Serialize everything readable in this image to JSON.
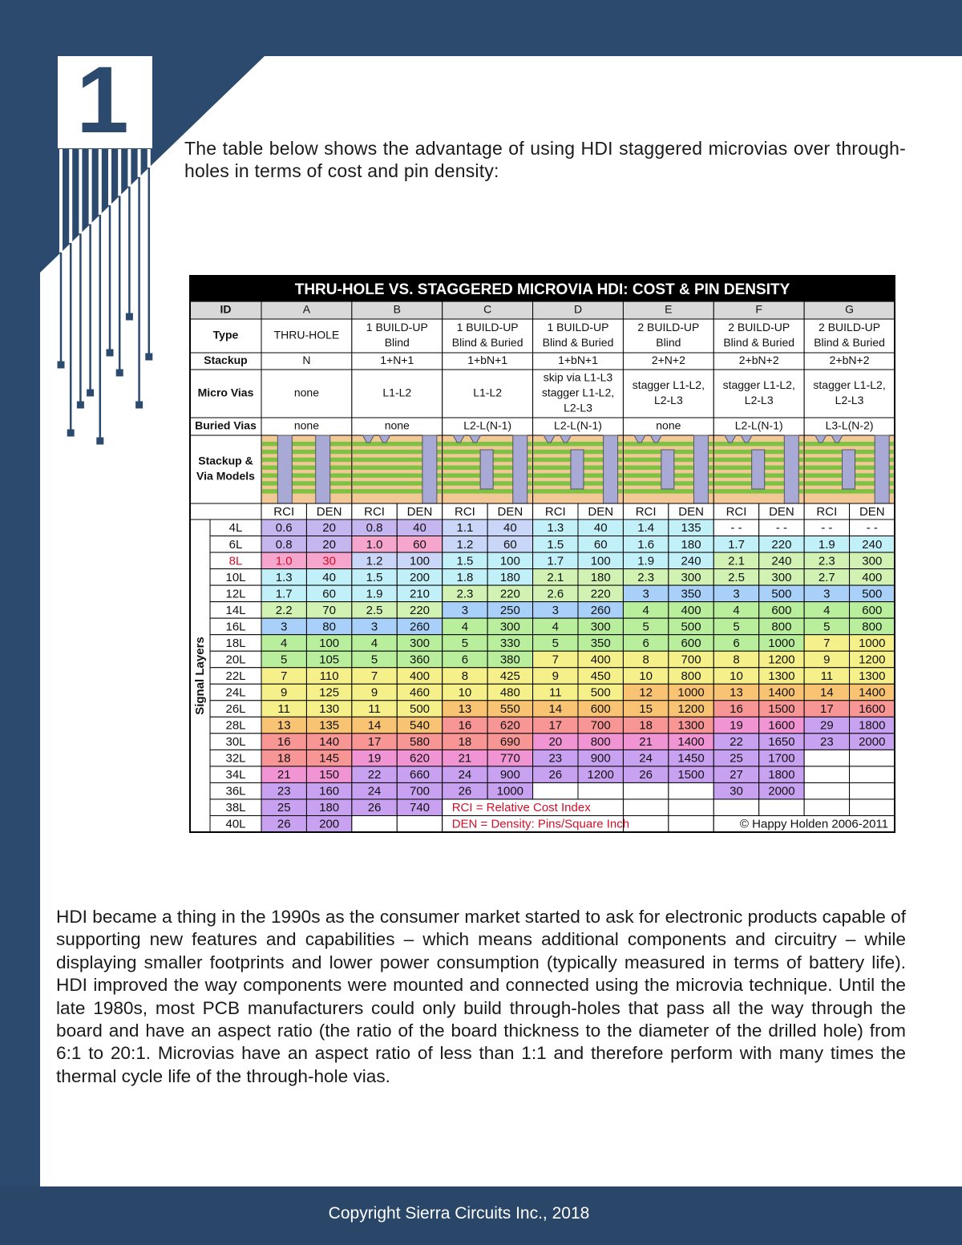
{
  "page_number": "1",
  "intro": "The table below shows the advantage of using HDI staggered microvias over through-holes in terms of cost and pin density:",
  "table": {
    "title": "THRU-HOLE VS. STAGGERED MICROVIA HDI:  COST & PIN DENSITY",
    "header_rows": [
      {
        "label": [
          "ID"
        ],
        "cells": [
          [
            "A"
          ],
          [
            "B"
          ],
          [
            "C"
          ],
          [
            "D"
          ],
          [
            "E"
          ],
          [
            "F"
          ],
          [
            "G"
          ]
        ]
      },
      {
        "label": [
          "Type"
        ],
        "cells": [
          [
            "THRU-HOLE"
          ],
          [
            "1 BUILD-UP",
            "Blind"
          ],
          [
            "1 BUILD-UP",
            "Blind & Buried"
          ],
          [
            "1 BUILD-UP",
            "Blind & Buried"
          ],
          [
            "2 BUILD-UP",
            "Blind"
          ],
          [
            "2 BUILD-UP",
            "Blind & Buried"
          ],
          [
            "2 BUILD-UP",
            "Blind & Buried"
          ]
        ]
      },
      {
        "label": [
          "Stackup"
        ],
        "cells": [
          [
            "N"
          ],
          [
            "1+N+1"
          ],
          [
            "1+bN+1"
          ],
          [
            "1+bN+1"
          ],
          [
            "2+N+2"
          ],
          [
            "2+bN+2"
          ],
          [
            "2+bN+2"
          ]
        ]
      },
      {
        "label": [
          "Micro Vias"
        ],
        "cells": [
          [
            "none"
          ],
          [
            "L1-L2"
          ],
          [
            "L1-L2"
          ],
          [
            "skip via L1-L3",
            "stagger L1-L2,",
            "L2-L3"
          ],
          [
            "stagger L1-L2,",
            "L2-L3"
          ],
          [
            "stagger L1-L2,",
            "L2-L3"
          ],
          [
            "stagger L1-L2,",
            "L2-L3"
          ]
        ]
      },
      {
        "label": [
          "Buried Vias"
        ],
        "cells": [
          [
            "none"
          ],
          [
            "none"
          ],
          [
            "L2-L(N-1)"
          ],
          [
            "L2-L(N-1)"
          ],
          [
            "none"
          ],
          [
            "L2-L(N-1)"
          ],
          [
            "L3-L(N-2)"
          ]
        ]
      }
    ],
    "model_label": [
      "Stackup &",
      "Via Models"
    ],
    "side_label": "Signal Layers",
    "subheaders": [
      "RCI",
      "DEN"
    ],
    "rows": [
      {
        "layer": "4L",
        "values": [
          "0.6",
          "20",
          "0.8",
          "40",
          "1.1",
          "40",
          "1.3",
          "40",
          "1.4",
          "135",
          "- -",
          "- -",
          "- -",
          "- -"
        ]
      },
      {
        "layer": "6L",
        "values": [
          "0.8",
          "20",
          "1.0",
          "60",
          "1.2",
          "60",
          "1.5",
          "60",
          "1.6",
          "180",
          "1.7",
          "220",
          "1.9",
          "240"
        ]
      },
      {
        "layer": "8L",
        "baseline": true,
        "values": [
          "1.0",
          "30",
          "1.2",
          "100",
          "1.5",
          "100",
          "1.7",
          "100",
          "1.9",
          "240",
          "2.1",
          "240",
          "2.3",
          "300"
        ]
      },
      {
        "layer": "10L",
        "values": [
          "1.3",
          "40",
          "1.5",
          "200",
          "1.8",
          "180",
          "2.1",
          "180",
          "2.3",
          "300",
          "2.5",
          "300",
          "2.7",
          "400"
        ]
      },
      {
        "layer": "12L",
        "values": [
          "1.7",
          "60",
          "1.9",
          "210",
          "2.3",
          "220",
          "2.6",
          "220",
          "3",
          "350",
          "3",
          "500",
          "3",
          "500"
        ]
      },
      {
        "layer": "14L",
        "values": [
          "2.2",
          "70",
          "2.5",
          "220",
          "3",
          "250",
          "3",
          "260",
          "4",
          "400",
          "4",
          "600",
          "4",
          "600"
        ]
      },
      {
        "layer": "16L",
        "values": [
          "3",
          "80",
          "3",
          "260",
          "4",
          "300",
          "4",
          "300",
          "5",
          "500",
          "5",
          "800",
          "5",
          "800"
        ]
      },
      {
        "layer": "18L",
        "values": [
          "4",
          "100",
          "4",
          "300",
          "5",
          "330",
          "5",
          "350",
          "6",
          "600",
          "6",
          "1000",
          "7",
          "1000"
        ]
      },
      {
        "layer": "20L",
        "values": [
          "5",
          "105",
          "5",
          "360",
          "6",
          "380",
          "7",
          "400",
          "8",
          "700",
          "8",
          "1200",
          "9",
          "1200"
        ]
      },
      {
        "layer": "22L",
        "values": [
          "7",
          "110",
          "7",
          "400",
          "8",
          "425",
          "9",
          "450",
          "10",
          "800",
          "10",
          "1300",
          "11",
          "1300"
        ]
      },
      {
        "layer": "24L",
        "values": [
          "9",
          "125",
          "9",
          "460",
          "10",
          "480",
          "11",
          "500",
          "12",
          "1000",
          "13",
          "1400",
          "14",
          "1400"
        ]
      },
      {
        "layer": "26L",
        "values": [
          "11",
          "130",
          "11",
          "500",
          "13",
          "550",
          "14",
          "600",
          "15",
          "1200",
          "16",
          "1500",
          "17",
          "1600"
        ]
      },
      {
        "layer": "28L",
        "values": [
          "13",
          "135",
          "14",
          "540",
          "16",
          "620",
          "17",
          "700",
          "18",
          "1300",
          "19",
          "1600",
          "29",
          "1800"
        ]
      },
      {
        "layer": "30L",
        "values": [
          "16",
          "140",
          "17",
          "580",
          "18",
          "690",
          "20",
          "800",
          "21",
          "1400",
          "22",
          "1650",
          "23",
          "2000"
        ]
      },
      {
        "layer": "32L",
        "values": [
          "18",
          "145",
          "19",
          "620",
          "21",
          "770",
          "23",
          "900",
          "24",
          "1450",
          "25",
          "1700",
          null,
          null
        ]
      },
      {
        "layer": "34L",
        "values": [
          "21",
          "150",
          "22",
          "660",
          "24",
          "900",
          "26",
          "1200",
          "26",
          "1500",
          "27",
          "1800",
          null,
          null
        ]
      },
      {
        "layer": "36L",
        "values": [
          "23",
          "160",
          "24",
          "700",
          "26",
          "1000",
          null,
          null,
          null,
          null,
          "30",
          "2000",
          null,
          null
        ]
      },
      {
        "layer": "38L",
        "values": [
          "25",
          "180",
          "26",
          "740",
          null,
          null,
          null,
          null,
          null,
          null,
          null,
          null,
          null,
          null
        ]
      },
      {
        "layer": "40L",
        "values": [
          "26",
          "200",
          null,
          null,
          null,
          null,
          null,
          null,
          null,
          null,
          null,
          null,
          null,
          null
        ]
      }
    ],
    "legend": [
      "RCI = Relative Cost Index",
      "DEN = Density: Pins/Square Inch"
    ],
    "credit": "© Happy Holden 2006-2011"
  },
  "body": "HDI became a thing in the 1990s as the consumer market started to ask for electronic products capable of supporting new features and capabilities – which means additional components and circuitry – while displaying smaller footprints and lower power consumption (typically measured in terms of battery life). HDI improved the way components were mounted and connected using the microvia technique. Until the late 1980s, most PCB manufacturers could only build through-holes that pass all the way through the board and have an aspect ratio (the ratio of the board thickness to the diameter of the drilled hole) from 6:1 to 20:1. Microvias have an aspect ratio of less than 1:1 and therefore perform with many times the thermal cycle life of the through-hole vias.",
  "footer": "Copyright Sierra Circuits Inc., 2018"
}
